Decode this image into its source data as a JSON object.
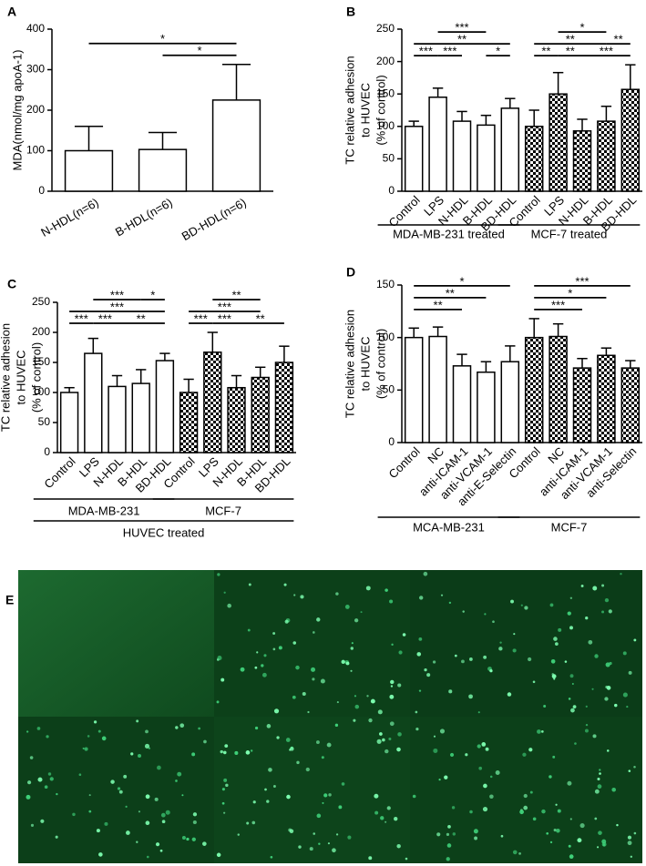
{
  "chart_data": [
    {
      "type": "bar",
      "panel": "A",
      "ylabel": "MDA(nmol/mg apoA-1)",
      "categories": [
        "N-HDL(n=6)",
        "B-HDL(n=6)",
        "BD-HDL(n=6)"
      ],
      "values": [
        100,
        103,
        225
      ],
      "errors": [
        60,
        42,
        88
      ],
      "groups": [
        {
          "start": 0,
          "end": 2,
          "pattern": "open"
        }
      ],
      "ylim": [
        0,
        400
      ],
      "yticks": [
        0,
        100,
        200,
        300,
        400
      ],
      "annotations": [
        {
          "text": "*",
          "from": 1,
          "to": 2
        },
        {
          "text": "*",
          "from": 0,
          "to": 2
        }
      ]
    },
    {
      "type": "bar",
      "panel": "B",
      "ylabel": [
        "TC relative adhesion",
        "to HUVEC",
        "(% of control)"
      ],
      "categories": [
        "Control",
        "LPS",
        "N-HDL",
        "B-HDL",
        "BD-HDL",
        "Control",
        "LPS",
        "N-HDL",
        "B-HDL",
        "BD-HDL"
      ],
      "values": [
        100,
        145,
        108,
        102,
        128,
        100,
        150,
        93,
        108,
        157
      ],
      "errors": [
        8,
        14,
        15,
        15,
        15,
        25,
        33,
        18,
        23,
        38
      ],
      "groups": [
        {
          "label": "MDA-MB-231 treated",
          "start": 0,
          "end": 4,
          "pattern": "open"
        },
        {
          "label": "MCF-7 treated",
          "start": 5,
          "end": 9,
          "pattern": "checker"
        }
      ],
      "ylim": [
        0,
        250
      ],
      "yticks": [
        0,
        50,
        100,
        150,
        200,
        250
      ],
      "annotations": [
        {
          "text": "***",
          "from": 0,
          "to": 1
        },
        {
          "text": "***",
          "from": 1,
          "to": 2
        },
        {
          "text": "**",
          "from": 0,
          "to": 4
        },
        {
          "text": "***",
          "from": 1,
          "to": 3
        },
        {
          "text": "*",
          "from": 3,
          "to": 4
        },
        {
          "text": "**",
          "from": 5,
          "to": 6
        },
        {
          "text": "**",
          "from": 6,
          "to": 7
        },
        {
          "text": "***",
          "from": 7,
          "to": 9
        },
        {
          "text": "**",
          "from": 5,
          "to": 8
        },
        {
          "text": "*",
          "from": 6,
          "to": 8
        },
        {
          "text": "**",
          "from": 8,
          "to": 9
        }
      ]
    },
    {
      "type": "bar",
      "panel": "C",
      "ylabel": [
        "TC relative adhesion",
        "to HUVEC",
        "(% of control)"
      ],
      "categories": [
        "Control",
        "LPS",
        "N-HDL",
        "B-HDL",
        "BD-HDL",
        "Control",
        "LPS",
        "N-HDL",
        "B-HDL",
        "BD-HDL"
      ],
      "values": [
        100,
        165,
        110,
        115,
        153,
        100,
        167,
        108,
        125,
        150
      ],
      "errors": [
        8,
        25,
        18,
        23,
        12,
        22,
        33,
        20,
        17,
        27
      ],
      "groups": [
        {
          "label": "MDA-MB-231",
          "start": 0,
          "end": 4,
          "pattern": "open"
        },
        {
          "label": "MCF-7",
          "start": 5,
          "end": 9,
          "pattern": "checker"
        }
      ],
      "footer": "HUVEC treated",
      "ylim": [
        0,
        250
      ],
      "yticks": [
        0,
        50,
        100,
        150,
        200,
        250
      ],
      "annotations": [
        {
          "text": "***",
          "from": 0,
          "to": 1
        },
        {
          "text": "***",
          "from": 1,
          "to": 2
        },
        {
          "text": "**",
          "from": 2,
          "to": 4
        },
        {
          "text": "***",
          "from": 0,
          "to": 4
        },
        {
          "text": "***",
          "from": 1,
          "to": 3
        },
        {
          "text": "*",
          "from": 3,
          "to": 4
        },
        {
          "text": "***",
          "from": 5,
          "to": 6
        },
        {
          "text": "***",
          "from": 6,
          "to": 7
        },
        {
          "text": "**",
          "from": 7,
          "to": 9
        },
        {
          "text": "***",
          "from": 5,
          "to": 8
        },
        {
          "text": "**",
          "from": 6,
          "to": 8
        }
      ]
    },
    {
      "type": "bar",
      "panel": "D",
      "ylabel": [
        "TC relative adhesion",
        "to HUVEC",
        "(% of control)"
      ],
      "categories": [
        "Control",
        "NC",
        "anti-ICAM-1",
        "anti-VCAM-1",
        "anti-E-Selectin",
        "Control",
        "NC",
        "anti-ICAM-1",
        "anti-VCAM-1",
        "anti-Selectin"
      ],
      "values": [
        100,
        101,
        73,
        67,
        77,
        100,
        101,
        71,
        83,
        71
      ],
      "errors": [
        9,
        9,
        11,
        10,
        15,
        18,
        12,
        9,
        7,
        7
      ],
      "groups": [
        {
          "label": "MCA-MB-231",
          "start": 0,
          "end": 4,
          "pattern": "open"
        },
        {
          "label": "MCF-7",
          "start": 5,
          "end": 9,
          "pattern": "checker"
        }
      ],
      "ylim": [
        0,
        150
      ],
      "yticks": [
        0,
        50,
        100,
        150
      ],
      "annotations": [
        {
          "text": "**",
          "from": 0,
          "to": 2
        },
        {
          "text": "**",
          "from": 0,
          "to": 3
        },
        {
          "text": "*",
          "from": 0,
          "to": 4
        },
        {
          "text": "***",
          "from": 5,
          "to": 7
        },
        {
          "text": "*",
          "from": 5,
          "to": 8
        },
        {
          "text": "***",
          "from": 5,
          "to": 9
        }
      ]
    }
  ],
  "image_panel": {
    "label": "E"
  }
}
